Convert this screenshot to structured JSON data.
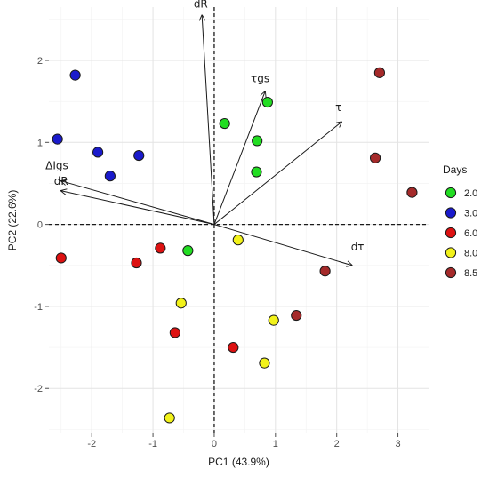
{
  "chart_data": {
    "type": "scatter",
    "subtype": "pca-biplot",
    "xlabel": "PC1 (43.9%)",
    "ylabel": "PC2 (22.6%)",
    "xlim": [
      -2.7,
      3.5
    ],
    "ylim": [
      -2.55,
      2.65
    ],
    "xticks": [
      -2,
      -1,
      0,
      1,
      2,
      3
    ],
    "yticks": [
      -2,
      -1,
      0,
      1,
      2
    ],
    "xtick_labels": [
      "-2",
      "-1",
      "0",
      "1",
      "2",
      "3"
    ],
    "ytick_labels": [
      "-2",
      "-1",
      "0",
      "1",
      "2"
    ],
    "grid": true,
    "reference_lines": {
      "x": 0,
      "y": 0,
      "style": "dashed"
    },
    "legend": {
      "title": "Days",
      "position": "right",
      "entries": [
        {
          "label": "2.0",
          "color": "#22dd22"
        },
        {
          "label": "3.0",
          "color": "#1a1acc"
        },
        {
          "label": "6.0",
          "color": "#dd1111"
        },
        {
          "label": "8.0",
          "color": "#f2f21a"
        },
        {
          "label": "8.5",
          "color": "#a52a2a"
        }
      ]
    },
    "series": [
      {
        "name": "2.0",
        "color": "#22dd22",
        "points": [
          [
            0.17,
            1.23
          ],
          [
            0.87,
            1.49
          ],
          [
            0.7,
            1.02
          ],
          [
            0.69,
            0.64
          ],
          [
            -0.43,
            -0.32
          ]
        ]
      },
      {
        "name": "3.0",
        "color": "#1a1acc",
        "points": [
          [
            -2.27,
            1.82
          ],
          [
            -2.56,
            1.04
          ],
          [
            -1.9,
            0.88
          ],
          [
            -1.7,
            0.59
          ],
          [
            -1.23,
            0.84
          ]
        ]
      },
      {
        "name": "6.0",
        "color": "#dd1111",
        "points": [
          [
            -2.5,
            -0.41
          ],
          [
            -1.27,
            -0.47
          ],
          [
            -0.88,
            -0.29
          ],
          [
            -0.64,
            -1.32
          ],
          [
            0.31,
            -1.5
          ]
        ]
      },
      {
        "name": "8.0",
        "color": "#f2f21a",
        "points": [
          [
            0.39,
            -0.19
          ],
          [
            -0.54,
            -0.96
          ],
          [
            0.97,
            -1.17
          ],
          [
            0.82,
            -1.69
          ],
          [
            -0.73,
            -2.36
          ]
        ]
      },
      {
        "name": "8.5",
        "color": "#a52a2a",
        "points": [
          [
            2.7,
            1.85
          ],
          [
            2.63,
            0.81
          ],
          [
            3.23,
            0.39
          ],
          [
            1.81,
            -0.57
          ],
          [
            1.34,
            -1.11
          ]
        ]
      }
    ],
    "loadings": [
      {
        "name": "dR",
        "x": -0.2,
        "y": 2.55,
        "label_x": -0.22,
        "label_y": 2.68
      },
      {
        "name": "τgs",
        "x": 0.83,
        "y": 1.62,
        "label_x": 0.75,
        "label_y": 1.77
      },
      {
        "name": "τ",
        "x": 2.08,
        "y": 1.25,
        "label_x": 2.03,
        "label_y": 1.42
      },
      {
        "name": "ΔIgs",
        "x": -2.5,
        "y": 0.53,
        "label_x": -2.57,
        "label_y": 0.71
      },
      {
        "name": "dR",
        "x": -2.5,
        "y": 0.41,
        "label_x": -2.5,
        "label_y": 0.52
      },
      {
        "name": "dτ",
        "x": 2.25,
        "y": -0.5,
        "label_x": 2.34,
        "label_y": -0.28
      }
    ]
  }
}
